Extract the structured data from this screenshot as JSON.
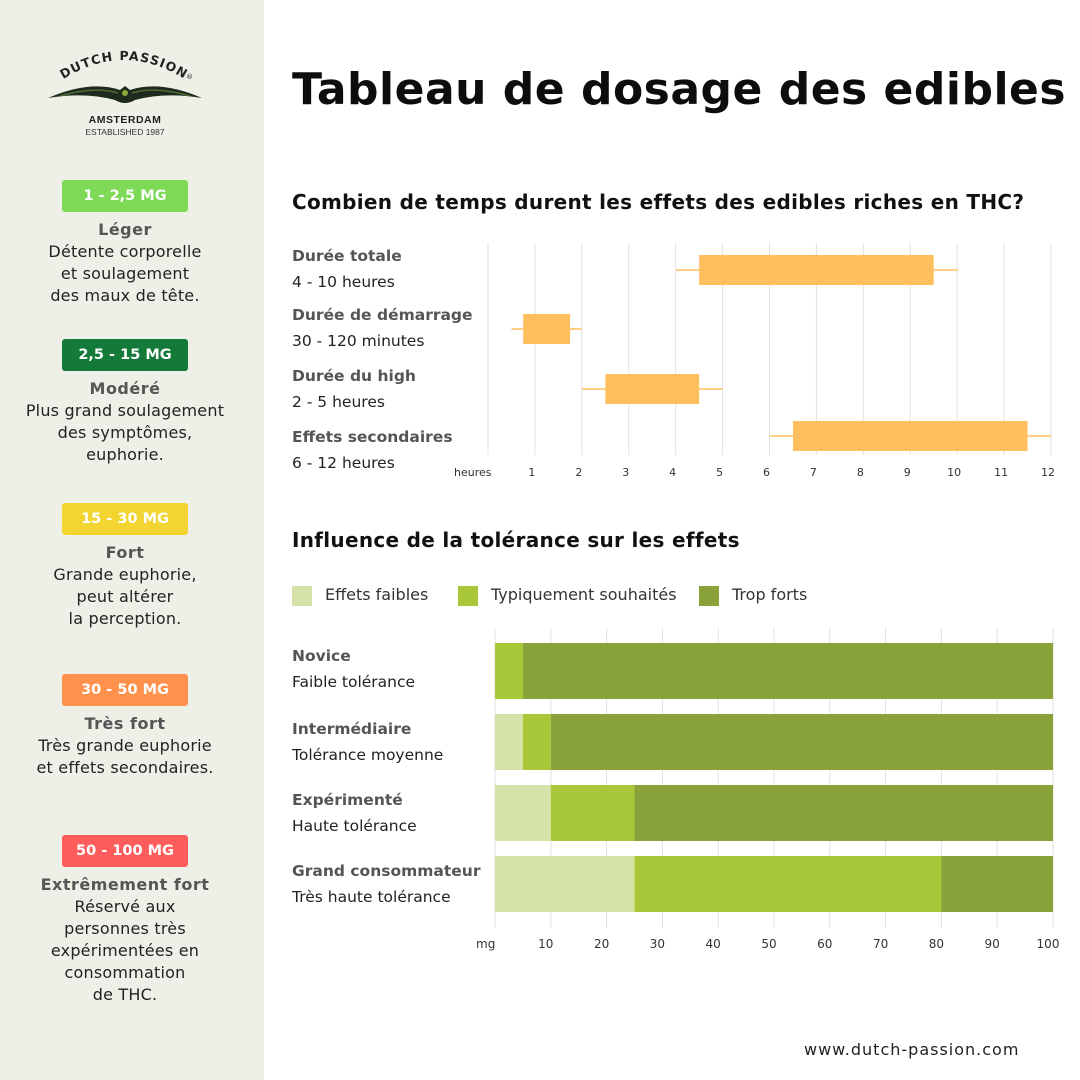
{
  "brand": {
    "name": "DUTCH PASSION",
    "registered": "®",
    "city": "AMSTERDAM",
    "established": "ESTABLISHED 1987"
  },
  "title": "Tableau de dosage des edibles",
  "doses": [
    {
      "badge": "1 - 2,5 MG",
      "color": "#7ed957",
      "title": "Léger",
      "desc": "Détente corporelle\net soulagement\ndes maux de tête."
    },
    {
      "badge": "2,5 - 15 MG",
      "color": "#137a3a",
      "title": "Modéré",
      "desc": "Plus grand soulagement\ndes symptômes,\neuphorie."
    },
    {
      "badge": "15 - 30 MG",
      "color": "#f3d531",
      "title": "Fort",
      "desc": "Grande euphorie,\npeut altérer\nla perception."
    },
    {
      "badge": "30 - 50 MG",
      "color": "#ff914d",
      "title": "Très fort",
      "desc": "Très grande euphorie\net effets secondaires."
    },
    {
      "badge": "50 - 100 MG",
      "color": "#ff5c5c",
      "title": "Extrêmement fort",
      "desc": "Réservé aux\npersonnes très\nexpérimentées en\nconsommation\nde THC."
    }
  ],
  "chart_data": [
    {
      "type": "bar",
      "subtype": "box",
      "title": "Combien de temps durent les effets des edibles riches en THC?",
      "xlabel": "heures",
      "x_ticks": [
        1,
        2,
        3,
        4,
        5,
        6,
        7,
        8,
        9,
        10,
        11,
        12
      ],
      "xlim": [
        0,
        12
      ],
      "grid": true,
      "color": "#ffbf5e",
      "rows": [
        {
          "label": "Durée totale",
          "sublabel": "4 - 10 heures",
          "whisker": [
            4,
            10
          ],
          "box": [
            4.5,
            9.5
          ]
        },
        {
          "label": "Durée de démarrage",
          "sublabel": "30 - 120 minutes",
          "whisker": [
            0.5,
            2
          ],
          "box": [
            0.75,
            1.75
          ]
        },
        {
          "label": "Durée du high",
          "sublabel": "2 - 5 heures",
          "whisker": [
            2,
            5
          ],
          "box": [
            2.5,
            4.5
          ]
        },
        {
          "label": "Effets secondaires",
          "sublabel": "6 - 12 heures",
          "whisker": [
            6,
            12
          ],
          "box": [
            6.5,
            11.5
          ]
        }
      ]
    },
    {
      "type": "bar",
      "subtype": "stacked-horizontal",
      "title": "Influence de la tolérance sur les effets",
      "xlabel": "mg",
      "x_ticks": [
        10,
        20,
        30,
        40,
        50,
        60,
        70,
        80,
        90,
        100
      ],
      "xlim": [
        0,
        100
      ],
      "grid": true,
      "legend_position": "top",
      "series": [
        {
          "name": "Effets faibles",
          "color": "#d6e3a8"
        },
        {
          "name": "Typiquement souhaités",
          "color": "#a8c83a"
        },
        {
          "name": "Trop forts",
          "color": "#8aa23a"
        }
      ],
      "rows": [
        {
          "label": "Novice",
          "sublabel": "Faible tolérance",
          "values": [
            0,
            5,
            95
          ]
        },
        {
          "label": "Intermédiaire",
          "sublabel": "Tolérance moyenne",
          "values": [
            5,
            5,
            90
          ]
        },
        {
          "label": "Expérimenté",
          "sublabel": "Haute tolérance",
          "values": [
            10,
            15,
            75
          ]
        },
        {
          "label": "Grand consommateur",
          "sublabel": "Très haute tolérance",
          "values": [
            25,
            55,
            20
          ]
        }
      ]
    }
  ],
  "footer": "www.dutch-passion.com"
}
